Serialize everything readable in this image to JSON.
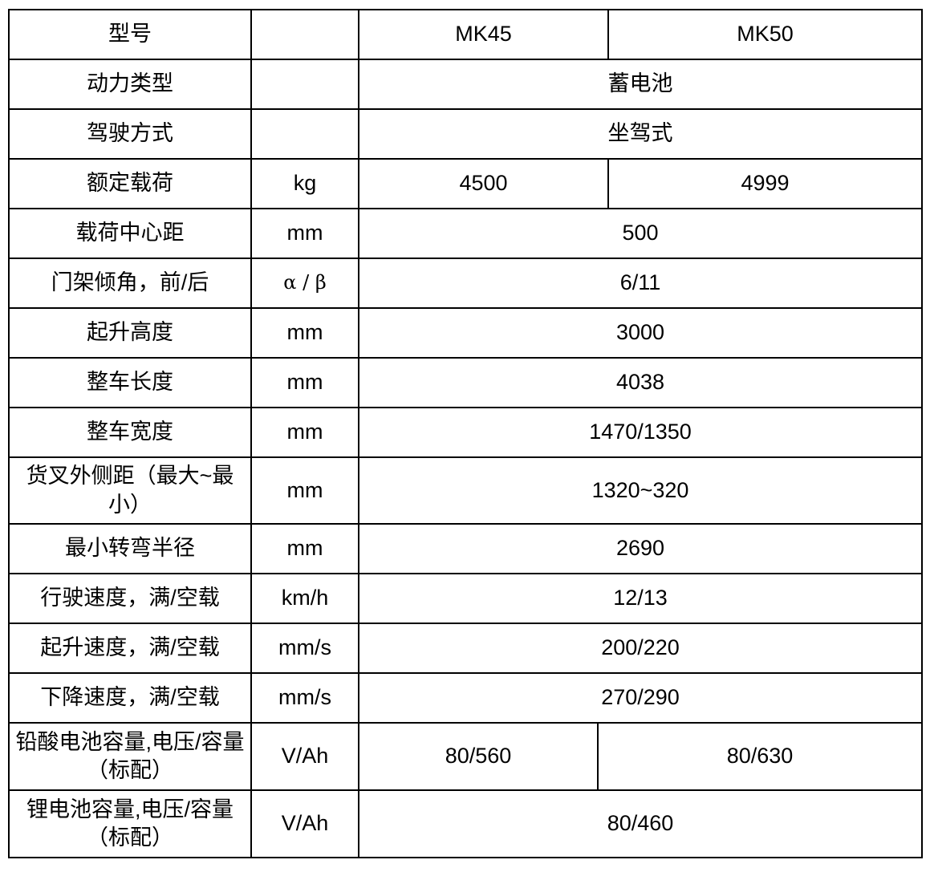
{
  "table": {
    "border_color": "#000000",
    "models": [
      "MK45",
      "MK50"
    ],
    "rows": [
      {
        "label": "型号",
        "unit": "",
        "mk45": "MK45",
        "mk50": "MK50"
      },
      {
        "label": "动力类型",
        "unit": "",
        "value": "蓄电池"
      },
      {
        "label": "驾驶方式",
        "unit": "",
        "value": "坐驾式"
      },
      {
        "label": "额定载荷",
        "unit": "kg",
        "mk45": "4500",
        "mk50": "4999"
      },
      {
        "label": "载荷中心距",
        "unit": "mm",
        "value": "500"
      },
      {
        "label": "门架倾角，前/后",
        "unit": "α / β",
        "value": "6/11"
      },
      {
        "label": "起升高度",
        "unit": "mm",
        "value": "3000"
      },
      {
        "label": "整车长度",
        "unit": "mm",
        "value": "4038"
      },
      {
        "label": "整车宽度",
        "unit": "mm",
        "value": "1470/1350"
      },
      {
        "label": "货叉外侧距（最大~最小）",
        "unit": "mm",
        "value": "1320~320"
      },
      {
        "label": "最小转弯半径",
        "unit": "mm",
        "value": "2690"
      },
      {
        "label": "行驶速度，满/空载",
        "unit": "km/h",
        "value": "12/13"
      },
      {
        "label": "起升速度，满/空载",
        "unit": "mm/s",
        "value": "200/220"
      },
      {
        "label": "下降速度，满/空载",
        "unit": "mm/s",
        "value": "270/290"
      },
      {
        "label": "铅酸电池容量,电压/容量（标配）",
        "unit": "V/Ah",
        "mk45": "80/560",
        "mk50": "80/630"
      },
      {
        "label": "锂电池容量,电压/容量（标配）",
        "unit": "V/Ah",
        "value": "80/460"
      }
    ]
  }
}
